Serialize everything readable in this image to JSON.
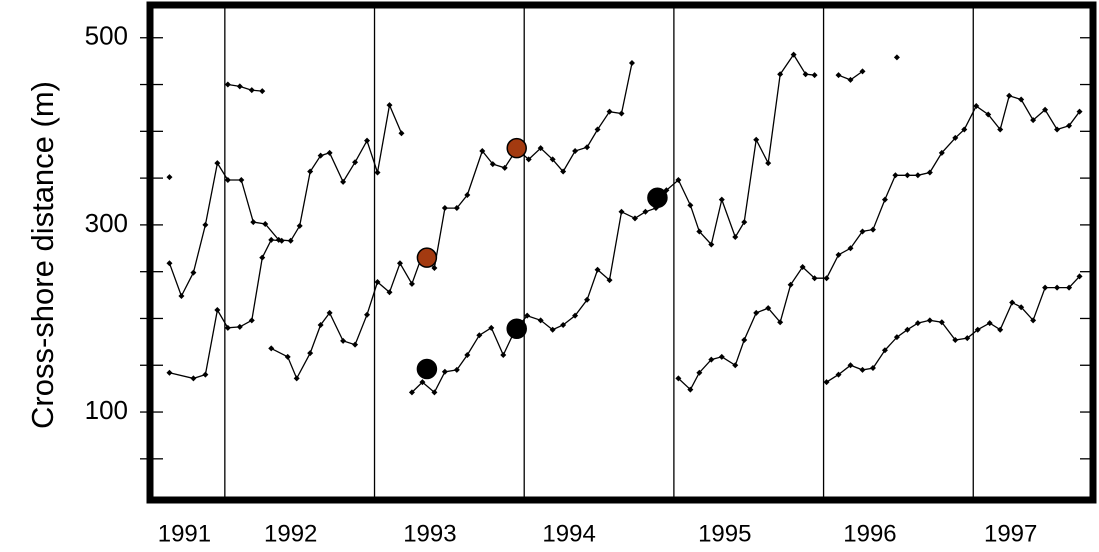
{
  "chart_data": {
    "type": "line",
    "ylabel": "Cross-shore distance (m)",
    "xlim": [
      1991.5,
      1997.8
    ],
    "ylim": [
      6,
      535
    ],
    "yticks": [
      100,
      300,
      500
    ],
    "yminor_ticks": [
      50,
      100,
      150,
      200,
      250,
      300,
      350,
      400,
      450,
      500
    ],
    "xticks": [
      {
        "value": 1991.73,
        "label": "1991"
      },
      {
        "value": 1992.44,
        "label": "1992"
      },
      {
        "value": 1993.37,
        "label": "1993"
      },
      {
        "value": 1994.3,
        "label": "1994"
      },
      {
        "value": 1995.34,
        "label": "1995"
      },
      {
        "value": 1996.31,
        "label": "1996"
      },
      {
        "value": 1997.25,
        "label": "1997"
      }
    ],
    "year_lines": [
      1992,
      1993,
      1994,
      1995,
      1996,
      1997
    ],
    "series": [
      {
        "color": "#000000",
        "line": true,
        "marker": "small",
        "x": [
          1991.63,
          1991.71,
          1991.79,
          1991.87,
          1991.95,
          1992.02,
          1992.11,
          1992.19,
          1992.27,
          1992.36,
          1992.44,
          1992.5,
          1992.57,
          1992.64,
          1992.7,
          1992.79,
          1992.87,
          1992.95,
          1993.02,
          1993.1,
          1993.18
        ],
        "values": [
          259,
          224,
          249,
          300,
          366,
          348,
          348,
          303,
          301,
          284,
          283,
          299,
          357,
          374,
          377,
          346,
          367,
          390,
          356,
          428,
          398
        ]
      },
      {
        "color": "#000000",
        "line": true,
        "marker": "small",
        "x": [
          1991.63,
          1991.79,
          1991.87,
          1991.95,
          1992.02,
          1992.1,
          1992.18,
          1992.25,
          1992.31,
          1992.38
        ],
        "values": [
          142,
          136,
          140,
          209,
          190,
          191,
          198,
          265,
          284,
          283
        ]
      },
      {
        "color": "#000000",
        "line": false,
        "marker": "small",
        "x": [
          1991.63
        ],
        "values": [
          351
        ]
      },
      {
        "color": "#000000",
        "line": true,
        "marker": "small",
        "x": [
          1992.02,
          1992.1,
          1992.18,
          1992.25
        ],
        "values": [
          450,
          448,
          444,
          443
        ]
      },
      {
        "color": "#000000",
        "line": true,
        "marker": "small",
        "x": [
          1992.31,
          1992.42,
          1992.48,
          1992.57,
          1992.64,
          1992.7,
          1992.79,
          1992.87,
          1992.95,
          1993.02,
          1993.1,
          1993.17,
          1993.25,
          1993.32,
          1993.4,
          1993.47,
          1993.55,
          1993.62,
          1993.72,
          1993.79,
          1993.87,
          1993.95,
          1994.03,
          1994.11,
          1994.19,
          1994.26,
          1994.34,
          1994.42,
          1994.49,
          1994.57,
          1994.65,
          1994.72
        ],
        "values": [
          168,
          159,
          136,
          163,
          193,
          206,
          176,
          172,
          204,
          239,
          228,
          259,
          237,
          268,
          254,
          318,
          318,
          332,
          379,
          365,
          361,
          381,
          370,
          382,
          370,
          357,
          379,
          383,
          402,
          421,
          419,
          473
        ]
      },
      {
        "color": "#000000",
        "line": true,
        "marker": "small",
        "x": [
          1993.25,
          1993.32,
          1993.4,
          1993.47,
          1993.55,
          1993.62,
          1993.7,
          1993.78,
          1993.86,
          1993.94,
          1994.02,
          1994.11,
          1994.19,
          1994.26,
          1994.34,
          1994.42,
          1994.49,
          1994.57,
          1994.65,
          1994.74,
          1994.81,
          1994.88,
          1994.95,
          1995.03,
          1995.11,
          1995.17,
          1995.25,
          1995.32,
          1995.41,
          1995.47,
          1995.55,
          1995.63,
          1995.71,
          1995.8,
          1995.88,
          1995.94
        ],
        "values": [
          121,
          132,
          121,
          143,
          145,
          161,
          182,
          190,
          161,
          188,
          203,
          198,
          188,
          193,
          203,
          220,
          252,
          241,
          314,
          307,
          314,
          318,
          337,
          348,
          321,
          293,
          279,
          327,
          287,
          303,
          391,
          366,
          461,
          482,
          461,
          460
        ]
      },
      {
        "color": "#000000",
        "line": true,
        "marker": "small",
        "x": [
          1995.03,
          1995.11,
          1995.17,
          1995.25,
          1995.32,
          1995.41,
          1995.47,
          1995.55,
          1995.63,
          1995.71,
          1995.78,
          1995.86,
          1995.94,
          1996.02,
          1996.1,
          1996.18,
          1996.26,
          1996.33,
          1996.41,
          1996.48,
          1996.56,
          1996.63,
          1996.71,
          1996.79,
          1996.88,
          1996.94,
          1997.02,
          1997.1,
          1997.18,
          1997.24,
          1997.32,
          1997.4,
          1997.48,
          1997.56,
          1997.64,
          1997.71
        ],
        "values": [
          136,
          124,
          142,
          156,
          159,
          150,
          177,
          206,
          211,
          196,
          236,
          255,
          243,
          243,
          268,
          275,
          293,
          295,
          327,
          353,
          353,
          353,
          356,
          377,
          393,
          402,
          427,
          418,
          402,
          438,
          434,
          412,
          423,
          402,
          406,
          421
        ]
      },
      {
        "color": "#000000",
        "line": true,
        "marker": "small",
        "x": [
          1996.1,
          1996.18,
          1996.26
        ],
        "values": [
          460,
          455,
          464
        ]
      },
      {
        "color": "#000000",
        "line": false,
        "marker": "small",
        "x": [
          1996.49
        ],
        "values": [
          479
        ]
      },
      {
        "color": "#000000",
        "line": true,
        "marker": "small",
        "x": [
          1996.02,
          1996.1,
          1996.18,
          1996.26,
          1996.33,
          1996.41,
          1996.49,
          1996.56,
          1996.63,
          1996.71,
          1996.79,
          1996.88,
          1996.96,
          1997.03,
          1997.11,
          1997.18,
          1997.26,
          1997.32,
          1997.4,
          1997.48,
          1997.56,
          1997.64,
          1997.71
        ],
        "values": [
          132,
          140,
          150,
          145,
          147,
          166,
          180,
          188,
          195,
          198,
          196,
          177,
          179,
          188,
          195,
          188,
          217,
          212,
          198,
          233,
          233,
          233,
          245
        ]
      },
      {
        "color": "#a33a10",
        "line": false,
        "marker": "dot",
        "x": [
          1993.35,
          1993.95
        ],
        "values": [
          265,
          382
        ]
      },
      {
        "color": "#000000",
        "line": false,
        "marker": "dot",
        "x": [
          1993.35,
          1993.95,
          1994.89
        ],
        "values": [
          146,
          189,
          329
        ]
      }
    ]
  }
}
